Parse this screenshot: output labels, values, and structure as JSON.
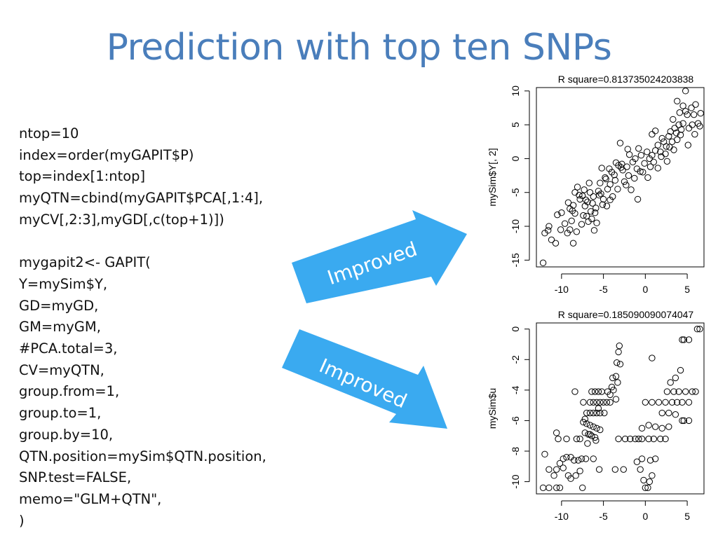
{
  "slide": {
    "title": "Prediction with top ten SNPs",
    "code_lines": [
      "ntop=10",
      "index=order(myGAPIT$P)",
      "top=index[1:ntop]",
      "myQTN=cbind(myGAPIT$PCA[,1:4],",
      "myCV[,2:3],myGD[,c(top+1)])",
      "",
      "mygapit2<- GAPIT(",
      "Y=mySim$Y,",
      "GD=myGD,",
      "GM=myGM,",
      "#PCA.total=3,",
      "CV=myQTN,",
      "group.from=1,",
      "group.to=1,",
      "group.by=10,",
      "QTN.position=mySim$QTN.position,",
      "SNP.test=FALSE,",
      "memo=\"GLM+QTN\",",
      ")"
    ],
    "arrows": [
      {
        "label": "Improved",
        "color": "#3aaaf0"
      },
      {
        "label": "Improved",
        "color": "#3aaaf0"
      }
    ]
  },
  "chart_data": [
    {
      "type": "scatter",
      "title": "R square=0.813735024203838",
      "xlabel": "",
      "ylabel": "mySim$Y[, 2]",
      "xlim": [
        -13,
        7
      ],
      "ylim": [
        -16,
        10.5
      ],
      "xticks": [
        -10,
        -5,
        0,
        5
      ],
      "yticks": [
        -15,
        -10,
        -5,
        0,
        5,
        10
      ],
      "grid": false,
      "points": [
        [
          -12,
          -11
        ],
        [
          -11.5,
          -10
        ],
        [
          -11.6,
          -10.6
        ],
        [
          -10.7,
          -12.5
        ],
        [
          -11.2,
          -12
        ],
        [
          -10.1,
          -10.5
        ],
        [
          -12.2,
          -15.4
        ],
        [
          -10.5,
          -8.3
        ],
        [
          -10,
          -8
        ],
        [
          -9.3,
          -11
        ],
        [
          -9,
          -10.5
        ],
        [
          -8.8,
          -9.2
        ],
        [
          -8.6,
          -12.5
        ],
        [
          -8.2,
          -10.8
        ],
        [
          -8.1,
          -4.2
        ],
        [
          -8.4,
          -5
        ],
        [
          -7.8,
          -6
        ],
        [
          -7.5,
          -5.5
        ],
        [
          -7.2,
          -7
        ],
        [
          -7,
          -8.5
        ],
        [
          -6.8,
          -9.3
        ],
        [
          -6.5,
          -7.8
        ],
        [
          -6.3,
          -6.6
        ],
        [
          -6,
          -8
        ],
        [
          -5.8,
          -9.5
        ],
        [
          -5.6,
          -4.8
        ],
        [
          -5.3,
          -5.2
        ],
        [
          -5,
          -6
        ],
        [
          -4.8,
          -2.8
        ],
        [
          -4.5,
          -4.5
        ],
        [
          -4.2,
          -3.8
        ],
        [
          -4,
          -2
        ],
        [
          -3.6,
          -3.2
        ],
        [
          -3.3,
          -4.5
        ],
        [
          -3.2,
          -1
        ],
        [
          -3,
          2.3
        ],
        [
          -2.8,
          -0.8
        ],
        [
          -2.2,
          -1.2
        ],
        [
          -2,
          -2.5
        ],
        [
          -1.5,
          -0.5
        ],
        [
          -1.2,
          0
        ],
        [
          -1,
          -1.5
        ],
        [
          -0.8,
          1.5
        ],
        [
          -0.5,
          0.5
        ],
        [
          -0.3,
          -2
        ],
        [
          -0.1,
          -0.7
        ],
        [
          0.2,
          1
        ],
        [
          0.5,
          0
        ],
        [
          0.8,
          0.5
        ],
        [
          1.2,
          1.2
        ],
        [
          1.5,
          2
        ],
        [
          1.8,
          1
        ],
        [
          2,
          3
        ],
        [
          2.2,
          2.5
        ],
        [
          2.5,
          1.8
        ],
        [
          2.8,
          3.3
        ],
        [
          3,
          4
        ],
        [
          3.2,
          2.5
        ],
        [
          3.5,
          4.5
        ],
        [
          3.7,
          3.8
        ],
        [
          4,
          5
        ],
        [
          4.2,
          3.5
        ],
        [
          4.5,
          5.2
        ],
        [
          4.8,
          7
        ],
        [
          5,
          6.5
        ],
        [
          5.2,
          4.5
        ],
        [
          5.5,
          7.5
        ],
        [
          5.8,
          6.5
        ],
        [
          6,
          8
        ],
        [
          6.3,
          5.2
        ],
        [
          6.6,
          6.7
        ],
        [
          4.5,
          7.8
        ],
        [
          4.8,
          10
        ],
        [
          3.8,
          8.5
        ],
        [
          5.6,
          5
        ],
        [
          6.5,
          4.8
        ],
        [
          -8.7,
          -7.7
        ],
        [
          -7.6,
          -9.7
        ],
        [
          -6.1,
          -10.6
        ],
        [
          -9.6,
          -9.6
        ],
        [
          -7.9,
          -5.4
        ],
        [
          -6.9,
          -6.4
        ],
        [
          -5.5,
          -5.4
        ],
        [
          -4.6,
          -7
        ],
        [
          -3.9,
          -5.6
        ],
        [
          -2.5,
          -3.4
        ],
        [
          -1.7,
          -4.6
        ],
        [
          -0.9,
          -6
        ],
        [
          0.3,
          -2.8
        ],
        [
          1.5,
          -1.4
        ],
        [
          2.4,
          0.7
        ],
        [
          3.4,
          1.3
        ],
        [
          2.6,
          -0.4
        ],
        [
          1,
          -0.5
        ],
        [
          -1.9,
          0.6
        ],
        [
          -2.7,
          -1.7
        ],
        [
          -4.3,
          -1.5
        ],
        [
          -5.2,
          -1.4
        ],
        [
          -6.7,
          -3.6
        ],
        [
          -7.3,
          -4.6
        ],
        [
          -9,
          -7.4
        ],
        [
          -8.4,
          -8.1
        ],
        [
          -7.4,
          -8.4
        ],
        [
          -6.4,
          -8.9
        ],
        [
          -5.9,
          -7.3
        ],
        [
          -5.1,
          -6.8
        ],
        [
          -4.2,
          -6.1
        ],
        [
          -7.1,
          -6.1
        ],
        [
          -6.2,
          -5.6
        ],
        [
          -8.6,
          -6.9
        ],
        [
          -9.2,
          -6.5
        ],
        [
          -6.6,
          -5
        ],
        [
          -5.4,
          -3.6
        ],
        [
          -4.7,
          -3
        ],
        [
          -3.7,
          -2.4
        ],
        [
          -2.9,
          -1.3
        ],
        [
          3.8,
          2.8
        ],
        [
          4.3,
          4.3
        ],
        [
          5.1,
          2
        ],
        [
          5.9,
          3.6
        ],
        [
          2.9,
          1.7
        ],
        [
          1.9,
          0.3
        ],
        [
          0.6,
          -1.2
        ],
        [
          -0.6,
          -1.9
        ],
        [
          -1.3,
          -2.9
        ],
        [
          -2.3,
          -3.9
        ],
        [
          3.3,
          5.8
        ],
        [
          4.1,
          6.8
        ],
        [
          1.2,
          4.1
        ],
        [
          0.8,
          3.6
        ],
        [
          -3.5,
          -0.6
        ],
        [
          -2.1,
          1.4
        ]
      ]
    },
    {
      "type": "scatter",
      "title": "R square=0.185090090074047",
      "xlabel": "",
      "ylabel": "mySim$u",
      "xlim": [
        -13,
        7
      ],
      "ylim": [
        -10.8,
        0.4
      ],
      "xticks": [
        -10,
        -5,
        0,
        5
      ],
      "yticks": [
        -10,
        -8,
        -6,
        -4,
        -2,
        0
      ],
      "grid": false,
      "points": [
        [
          6.2,
          0
        ],
        [
          6.5,
          0
        ],
        [
          4.6,
          -0.7
        ],
        [
          4.4,
          -0.7
        ],
        [
          5.2,
          -0.7
        ],
        [
          -3.1,
          -1.1
        ],
        [
          -3.2,
          -1.5
        ],
        [
          -3.4,
          -2.2
        ],
        [
          -3,
          -2.3
        ],
        [
          0.8,
          -1.9
        ],
        [
          -3.5,
          -3.1
        ],
        [
          -3.3,
          -3.5
        ],
        [
          -4,
          -3.8
        ],
        [
          -3.8,
          -4
        ],
        [
          -4.5,
          -4.1
        ],
        [
          -5.2,
          -4.1
        ],
        [
          -5.6,
          -4.1
        ],
        [
          -6,
          -4.1
        ],
        [
          -6.4,
          -4.1
        ],
        [
          -6.6,
          -4.8
        ],
        [
          -6.2,
          -4.8
        ],
        [
          -5.8,
          -4.8
        ],
        [
          -5.4,
          -4.8
        ],
        [
          -5,
          -4.8
        ],
        [
          -4.6,
          -4.8
        ],
        [
          -4.2,
          -4.8
        ],
        [
          -7.4,
          -4.8
        ],
        [
          -8.4,
          -4.1
        ],
        [
          -7,
          -5.5
        ],
        [
          -6.6,
          -5.5
        ],
        [
          -6.2,
          -5.5
        ],
        [
          -5.8,
          -5.5
        ],
        [
          -5.4,
          -5.5
        ],
        [
          -4.9,
          -5.5
        ],
        [
          -7.4,
          -6.1
        ],
        [
          -7,
          -6.2
        ],
        [
          -6.6,
          -6.3
        ],
        [
          -6.2,
          -6.4
        ],
        [
          -5.8,
          -6.5
        ],
        [
          -7.2,
          -6.8
        ],
        [
          -6.8,
          -6.9
        ],
        [
          -6.4,
          -7
        ],
        [
          -6,
          -7.1
        ],
        [
          -7.8,
          -7.2
        ],
        [
          -8.2,
          -7.2
        ],
        [
          -9.4,
          -7.2
        ],
        [
          -10.4,
          -7.2
        ],
        [
          -10.6,
          -6.8
        ],
        [
          -12,
          -8.2
        ],
        [
          -11.5,
          -9.2
        ],
        [
          -10.9,
          -9.6
        ],
        [
          -10.6,
          -9.2
        ],
        [
          -10.2,
          -8.8
        ],
        [
          -9.8,
          -8.5
        ],
        [
          -9.4,
          -8.4
        ],
        [
          -8.9,
          -8.4
        ],
        [
          -8.5,
          -8.6
        ],
        [
          -8,
          -8.6
        ],
        [
          -7.6,
          -8.5
        ],
        [
          -7.1,
          -8.5
        ],
        [
          -6.2,
          -8.5
        ],
        [
          -9.8,
          -9.1
        ],
        [
          -9.2,
          -9.6
        ],
        [
          -8.9,
          -9.8
        ],
        [
          -8.3,
          -9.6
        ],
        [
          -7.8,
          -9.3
        ],
        [
          -10.2,
          -10.4
        ],
        [
          -10.6,
          -10.4
        ],
        [
          -11.5,
          -10.4
        ],
        [
          -12.2,
          -10.4
        ],
        [
          -7.5,
          -10.4
        ],
        [
          -5.5,
          -9.2
        ],
        [
          -3.6,
          -9.2
        ],
        [
          -2.6,
          -9.2
        ],
        [
          -1,
          -8.7
        ],
        [
          -0.4,
          -8.5
        ],
        [
          0.6,
          -8.6
        ],
        [
          1.2,
          -8.5
        ],
        [
          0.8,
          -9.6
        ],
        [
          0.5,
          -10
        ],
        [
          0,
          -10.4
        ],
        [
          0.3,
          -10.4
        ],
        [
          -0.6,
          -9.2
        ],
        [
          -0.2,
          -9.9
        ],
        [
          -3.2,
          -7.2
        ],
        [
          -2.4,
          -7.2
        ],
        [
          -1.8,
          -7.2
        ],
        [
          -1.2,
          -7.2
        ],
        [
          -0.8,
          -7.2
        ],
        [
          -0.4,
          -7.2
        ],
        [
          0.4,
          -7.2
        ],
        [
          1,
          -7.2
        ],
        [
          1.8,
          -7.2
        ],
        [
          2.4,
          -7.2
        ],
        [
          -0.4,
          -6.5
        ],
        [
          0.4,
          -6.3
        ],
        [
          1.2,
          -6.4
        ],
        [
          2,
          -6.5
        ],
        [
          2.8,
          -6.4
        ],
        [
          0,
          -4.8
        ],
        [
          0.8,
          -4.8
        ],
        [
          1.6,
          -4.8
        ],
        [
          2.4,
          -4.8
        ],
        [
          3.2,
          -4.8
        ],
        [
          3.8,
          -4.8
        ],
        [
          4.4,
          -4.8
        ],
        [
          5.2,
          -4.8
        ],
        [
          6,
          -4.1
        ],
        [
          5.6,
          -4.1
        ],
        [
          4.8,
          -4.1
        ],
        [
          4,
          -4.1
        ],
        [
          3.4,
          -4.1
        ],
        [
          2.6,
          -4.1
        ],
        [
          3,
          -3.5
        ],
        [
          3.6,
          -3.2
        ],
        [
          4.2,
          -2.7
        ],
        [
          2,
          -5.5
        ],
        [
          2.8,
          -5.5
        ],
        [
          3.6,
          -5.6
        ],
        [
          4.4,
          -6
        ],
        [
          5.2,
          -6
        ],
        [
          4.6,
          -6
        ],
        [
          -6.6,
          -6.9
        ],
        [
          -5.4,
          -6.6
        ],
        [
          -6.9,
          -7.5
        ],
        [
          -5.9,
          -7.3
        ],
        [
          -7.2,
          -5.9
        ],
        [
          -5.6,
          -5.2
        ],
        [
          -4.2,
          -4.3
        ],
        [
          -3.9,
          -3.2
        ],
        [
          -3.5,
          -4.6
        ]
      ]
    }
  ]
}
